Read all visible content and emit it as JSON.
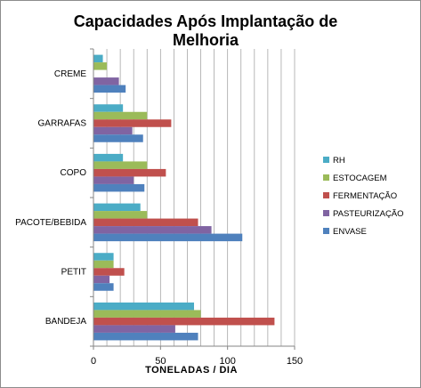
{
  "chart_data": {
    "type": "bar",
    "orientation": "horizontal",
    "title_lines": [
      "Capacidades Após Implantação de",
      "Melhoria"
    ],
    "xlabel": "TONELADAS / DIA",
    "ylabel": "",
    "xlim": [
      0,
      150
    ],
    "x_ticks": [
      "0",
      "50",
      "100",
      "150"
    ],
    "grid": "vertical",
    "legend_position": "right",
    "categories": [
      "CREME",
      "GARRAFAS",
      "COPO",
      "PACOTE/BEBIDA",
      "PETIT",
      "BANDEJA"
    ],
    "series": [
      {
        "name": "RH",
        "color": "#4bacc6",
        "values": [
          7,
          22,
          22,
          35,
          15,
          75
        ]
      },
      {
        "name": "ESTOCAGEM",
        "color": "#9bbb59",
        "values": [
          10,
          40,
          40,
          40,
          15,
          80
        ]
      },
      {
        "name": "FERMENTAÇÃO",
        "color": "#c0504d",
        "values": [
          0,
          58,
          54,
          78,
          23,
          135
        ]
      },
      {
        "name": "PASTEURIZAÇÃO",
        "color": "#8064a2",
        "values": [
          19,
          29,
          30,
          88,
          12,
          61
        ]
      },
      {
        "name": "ENVASE",
        "color": "#4f81bd",
        "values": [
          24,
          37,
          38,
          111,
          15,
          78
        ]
      }
    ]
  }
}
